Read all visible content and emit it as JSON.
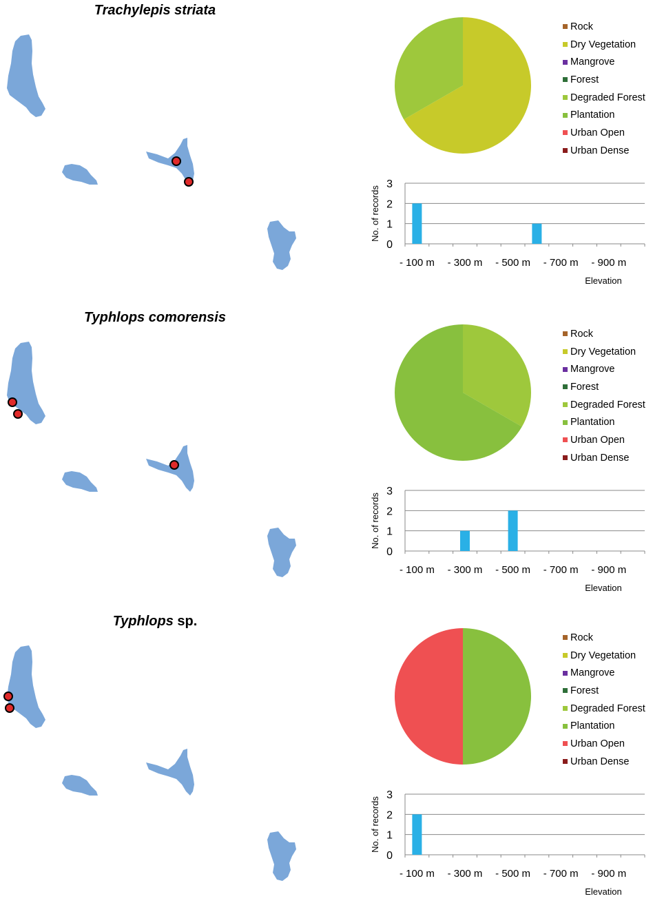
{
  "legend_categories": [
    {
      "label": "Rock",
      "color": "#a5642a"
    },
    {
      "label": "Dry Vegetation",
      "color": "#c7ca2a"
    },
    {
      "label": "Mangrove",
      "color": "#6a2fa0"
    },
    {
      "label": "Forest",
      "color": "#2e6e38"
    },
    {
      "label": "Degraded Forest",
      "color": "#9ec83c"
    },
    {
      "label": "Plantation",
      "color": "#88c03e"
    },
    {
      "label": "Urban Open",
      "color": "#ef5052"
    },
    {
      "label": "Urban Dense",
      "color": "#8a1c1c"
    }
  ],
  "colors": {
    "land": "#7ba7d9",
    "record_marker": "#e02a2a",
    "bar": "#2ab0e6",
    "grid": "#888888"
  },
  "panels": [
    {
      "title_genus": "Trachylepis striata",
      "title_suffix": "",
      "records_map": [
        {
          "island": "Moheli",
          "label": "record"
        },
        {
          "island": "Moheli",
          "label": "record"
        }
      ]
    },
    {
      "title_genus": "Typhlops comorensis",
      "title_suffix": "",
      "records_map": [
        {
          "island": "Grande Comore",
          "label": "record"
        },
        {
          "island": "Grande Comore",
          "label": "record"
        },
        {
          "island": "Anjouan",
          "label": "record"
        }
      ]
    },
    {
      "title_genus": "Typhlops",
      "title_suffix": " sp.",
      "records_map": [
        {
          "island": "Grande Comore",
          "label": "record"
        },
        {
          "island": "Grande Comore",
          "label": "record"
        }
      ]
    }
  ],
  "chart_data": [
    {
      "type": "pie",
      "slices": [
        {
          "category": "Dry Vegetation",
          "value": 2
        },
        {
          "category": "Degraded Forest",
          "value": 1
        }
      ],
      "legend_position": "right"
    },
    {
      "type": "bar",
      "categories": [
        "- 100 m",
        "- 200 m",
        "- 300 m",
        "- 400 m",
        "- 500 m",
        "- 600 m",
        "- 700 m",
        "- 800 m",
        "- 900 m",
        "- 1000 m"
      ],
      "tick_labels": [
        "- 100 m",
        "- 300 m",
        "- 500 m",
        "- 700 m",
        "- 900 m"
      ],
      "values": [
        2,
        0,
        0,
        0,
        0,
        1,
        0,
        0,
        0,
        0
      ],
      "xlabel": "Elevation",
      "ylabel": "No. of records",
      "ylim": [
        0,
        3
      ],
      "yticks": [
        0,
        1,
        2,
        3
      ],
      "grid": true
    },
    {
      "type": "pie",
      "slices": [
        {
          "category": "Degraded Forest",
          "value": 1
        },
        {
          "category": "Plantation",
          "value": 2
        }
      ],
      "legend_position": "right"
    },
    {
      "type": "bar",
      "categories": [
        "- 100 m",
        "- 200 m",
        "- 300 m",
        "- 400 m",
        "- 500 m",
        "- 600 m",
        "- 700 m",
        "- 800 m",
        "- 900 m",
        "- 1000 m"
      ],
      "tick_labels": [
        "- 100 m",
        "- 300 m",
        "- 500 m",
        "- 700 m",
        "- 900 m"
      ],
      "values": [
        0,
        0,
        1,
        0,
        2,
        0,
        0,
        0,
        0,
        0
      ],
      "xlabel": "Elevation",
      "ylabel": "No. of records",
      "ylim": [
        0,
        3
      ],
      "yticks": [
        0,
        1,
        2,
        3
      ],
      "grid": true
    },
    {
      "type": "pie",
      "slices": [
        {
          "category": "Plantation",
          "value": 1
        },
        {
          "category": "Urban Open",
          "value": 1
        }
      ],
      "legend_position": "right"
    },
    {
      "type": "bar",
      "categories": [
        "- 100 m",
        "- 200 m",
        "- 300 m",
        "- 400 m",
        "- 500 m",
        "- 600 m",
        "- 700 m",
        "- 800 m",
        "- 900 m",
        "- 1000 m"
      ],
      "tick_labels": [
        "- 100 m",
        "- 300 m",
        "- 500 m",
        "- 700 m",
        "- 900 m"
      ],
      "values": [
        2,
        0,
        0,
        0,
        0,
        0,
        0,
        0,
        0,
        0
      ],
      "xlabel": "Elevation",
      "ylabel": "No. of records",
      "ylim": [
        0,
        3
      ],
      "yticks": [
        0,
        1,
        2,
        3
      ],
      "grid": true
    }
  ]
}
